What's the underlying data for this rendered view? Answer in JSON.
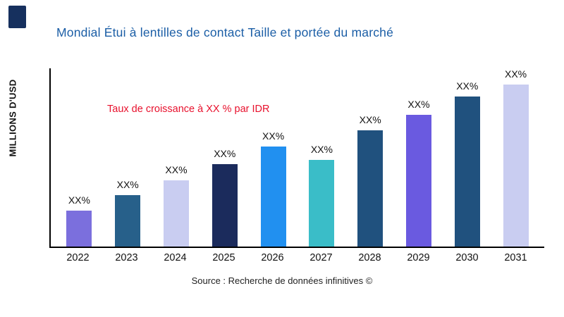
{
  "page": {
    "title": "Mondial Étui à lentilles de contact Taille et portée du marché",
    "ylabel": "MILLIONS D'USD",
    "annotation": "Taux de croissance à XX % par IDR",
    "source": "Source : Recherche de données infinitives ©",
    "title_color": "#1b5ea6",
    "annotation_color": "#e8112d"
  },
  "chart_data": {
    "type": "bar",
    "title": "Mondial Étui à lentilles de contact Taille et portée du marché",
    "xlabel": "",
    "ylabel": "MILLIONS D'USD",
    "categories": [
      "2022",
      "2023",
      "2024",
      "2025",
      "2026",
      "2027",
      "2028",
      "2029",
      "2030",
      "2031"
    ],
    "values": [
      50,
      72,
      93,
      116,
      140,
      122,
      163,
      185,
      210,
      233
    ],
    "value_labels": [
      "XX%",
      "XX%",
      "XX%",
      "XX%",
      "XX%",
      "XX%",
      "XX%",
      "XX%",
      "XX%",
      "XX%"
    ],
    "bar_colors": [
      "#7b6fdd",
      "#27608a",
      "#c9cdf1",
      "#1b2b5c",
      "#2190f0",
      "#3abdc8",
      "#20517e",
      "#6a5ae0",
      "#20517e",
      "#c9cdf1"
    ],
    "annotation": "Taux de croissance à XX % par IDR",
    "ylim": [
      0,
      250
    ],
    "grid": false,
    "legend": false
  }
}
